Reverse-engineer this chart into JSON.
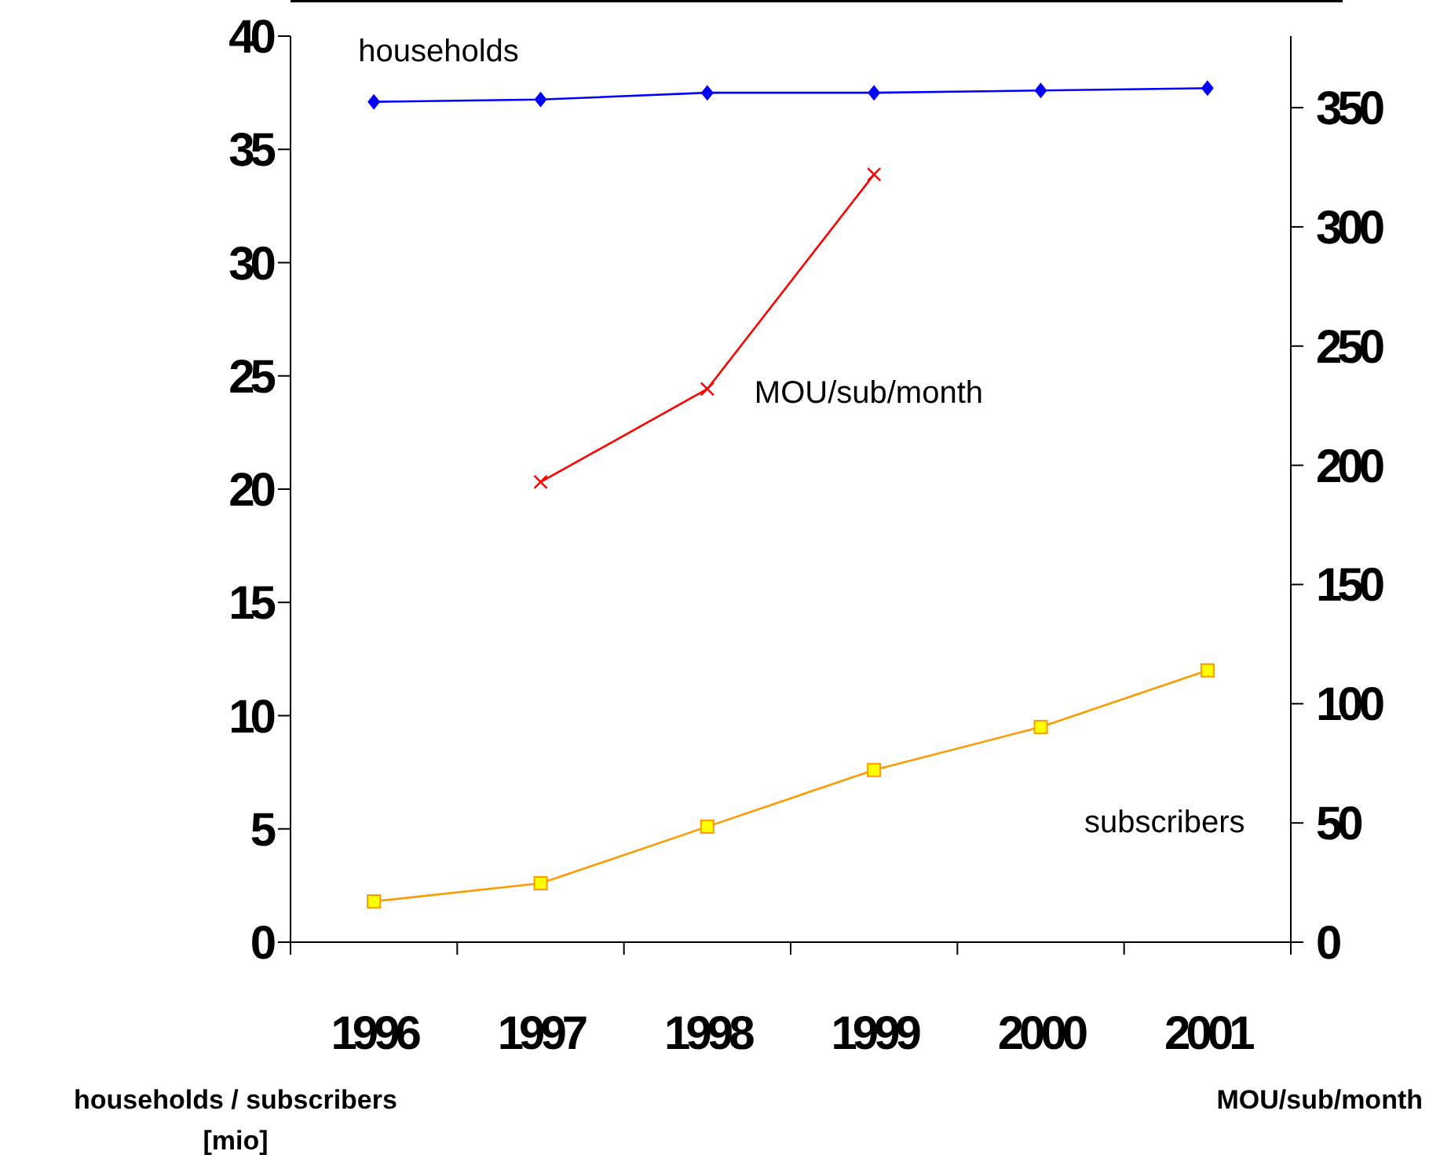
{
  "chart_data": {
    "type": "line",
    "categories": [
      "1996",
      "1997",
      "1998",
      "1999",
      "2000",
      "2001"
    ],
    "series": [
      {
        "name": "households",
        "color": "#0000ff",
        "marker": "diamond",
        "values": [
          37.1,
          37.2,
          37.5,
          37.5,
          37.6,
          37.7
        ]
      },
      {
        "name": "MOU/sub/month",
        "color": "#ff0000",
        "marker": "cross",
        "axis": "y2",
        "values": [
          null,
          193,
          232,
          322,
          null,
          null
        ]
      },
      {
        "name": "subscribers",
        "color": "#ff9900",
        "marker": "square",
        "values": [
          1.8,
          2.6,
          5.1,
          7.6,
          9.5,
          12.0
        ]
      }
    ],
    "ylim": [
      0,
      40
    ],
    "yticks": [
      0,
      5,
      10,
      15,
      20,
      25,
      30,
      35,
      40
    ],
    "y2lim": [
      0,
      380
    ],
    "y2ticks": [
      0,
      50,
      100,
      150,
      200,
      250,
      300,
      350
    ],
    "ylabel": "households / subscribers [mio]",
    "y2label": "MOU/sub/month",
    "grid": false
  }
}
